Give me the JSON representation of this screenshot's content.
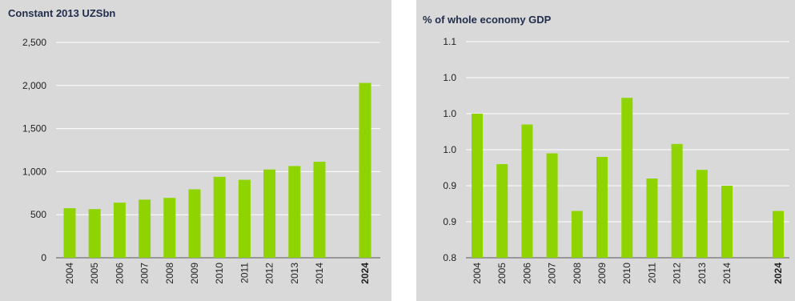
{
  "colors": {
    "bar": "#8fd400",
    "panel_bg": "#d9d9d9",
    "grid": "#ffffff",
    "axis": "#555555"
  },
  "chart_data": [
    {
      "type": "bar",
      "title": "Constant 2013 UZSbn",
      "categories": [
        "2004",
        "2005",
        "2006",
        "2007",
        "2008",
        "2009",
        "2010",
        "2011",
        "2012",
        "2013",
        "2014",
        "2024"
      ],
      "bold_categories": [
        "2024"
      ],
      "values": [
        575,
        565,
        640,
        675,
        695,
        795,
        940,
        905,
        1025,
        1065,
        1115,
        2030
      ],
      "ylim": [
        0,
        2500
      ],
      "yticks": [
        0,
        500,
        1000,
        1500,
        2000,
        2500
      ],
      "ytick_labels": [
        "0",
        "500",
        "1,000",
        "1,500",
        "2,000",
        "2,500"
      ],
      "grid": true,
      "xlabel": "",
      "ylabel": ""
    },
    {
      "type": "bar",
      "title": "% of whole economy GDP",
      "categories": [
        "2004",
        "2005",
        "2006",
        "2007",
        "2008",
        "2009",
        "2010",
        "2011",
        "2012",
        "2013",
        "2014",
        "2024"
      ],
      "bold_categories": [
        "2024"
      ],
      "values": [
        1.0,
        0.93,
        0.985,
        0.945,
        0.865,
        0.94,
        1.022,
        0.91,
        0.958,
        0.922,
        0.9,
        0.865
      ],
      "ylim": [
        0.8,
        1.1
      ],
      "yticks": [
        0.8,
        0.85,
        0.9,
        0.95,
        1.0,
        1.05,
        1.1
      ],
      "ytick_labels": [
        "0.8",
        "0.9",
        "0.9",
        "1.0",
        "1.0",
        "1.0",
        "1.1"
      ],
      "grid": true,
      "xlabel": "",
      "ylabel": ""
    }
  ]
}
